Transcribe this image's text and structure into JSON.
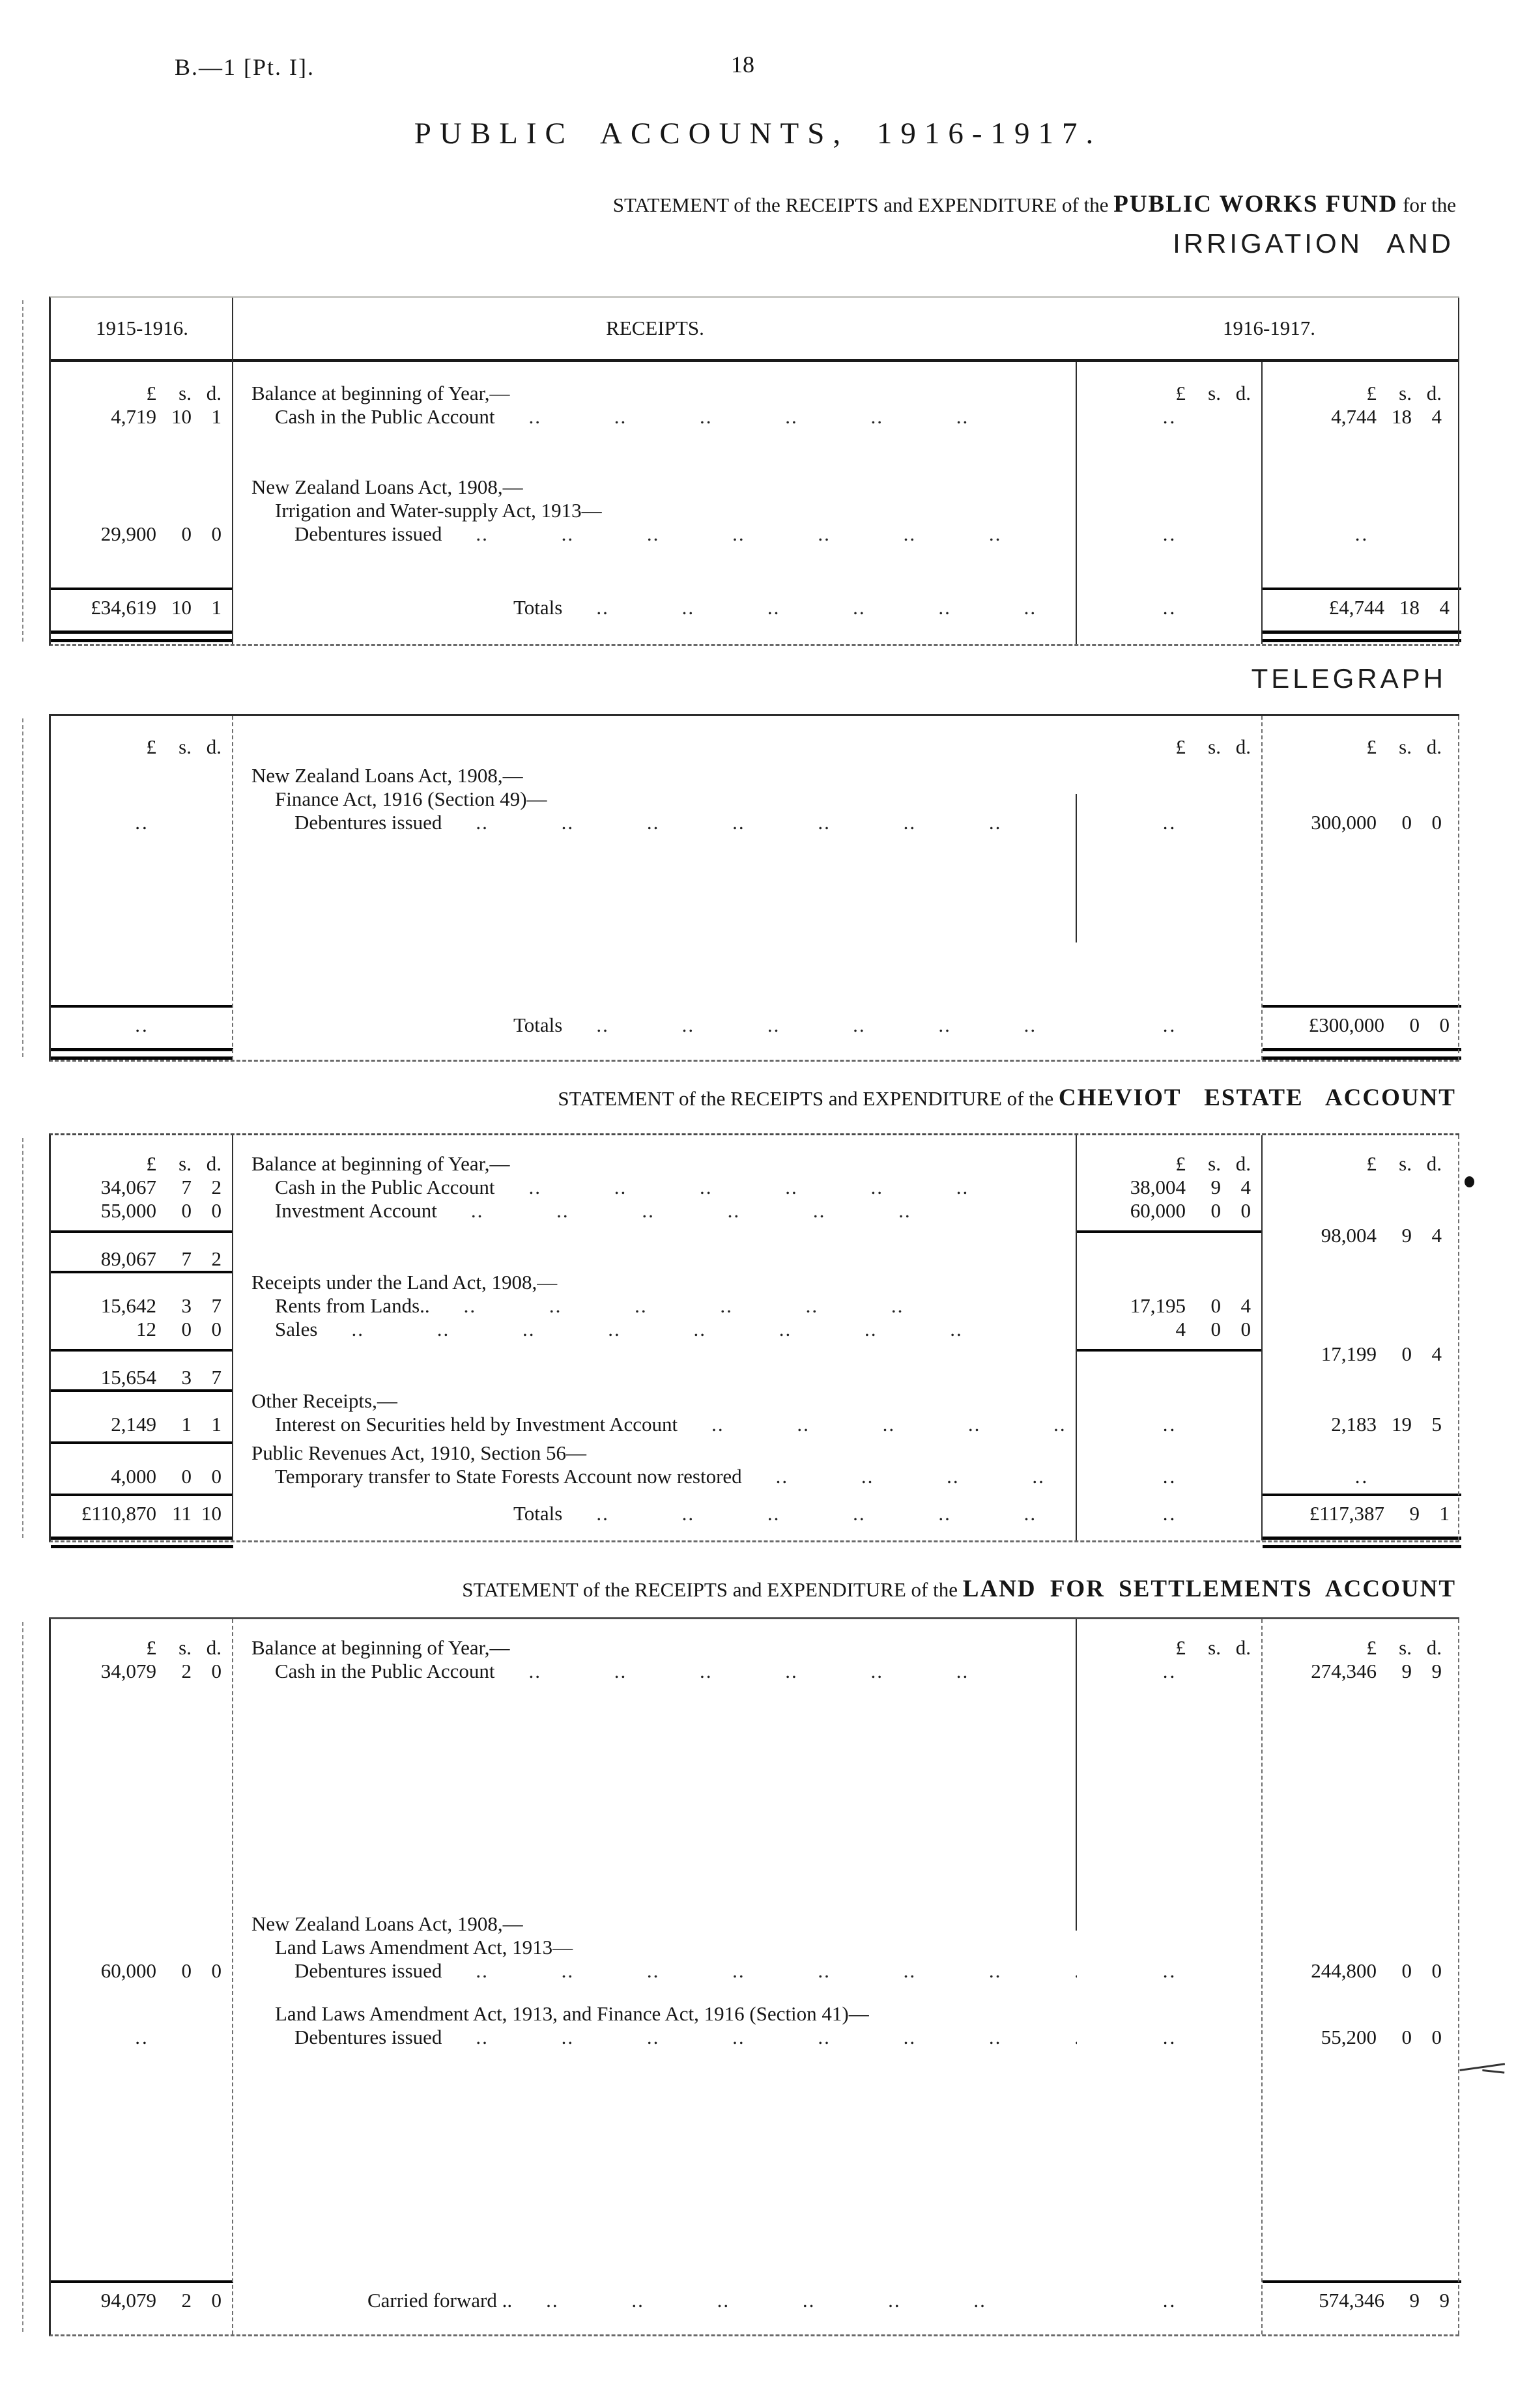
{
  "page": {
    "doc_ref": "B.—1 [Pt. I].",
    "page_number": "18",
    "title": "PUBLIC ACCOUNTS, 1916-1917.",
    "statement_prefix": "STATEMENT of the RECEIPTS and EXPENDITURE of the ",
    "works_account": "PUBLIC WORKS FUND",
    "works_suffix": " for the",
    "irrigation_heading": "IRRIGATION AND",
    "telegraph_heading": "TELEGRAPH",
    "cheviot_account": "CHEVIOT ESTATE ACCOUNT",
    "land_account": "LAND FOR SETTLEMENTS ACCOUNT",
    "currency_header": "£ s. d.",
    "ink_color": "#161616",
    "paper_color": "#ffffff"
  },
  "t1": {
    "year_left": "1915-1916.",
    "receipts_header": "RECEIPTS.",
    "year_right": "1916-1917.",
    "balance_group": "Balance at beginning of Year,—",
    "cash_label": "Cash in the Public Account",
    "cash_dots": ".. .. .. .. .. ..",
    "cash_left": "4,719 10 1",
    "cash_mid": "..",
    "cash_right": "4,744 18 4",
    "loans_group": "New Zealand Loans Act, 1908,—",
    "irrigation_sub": "Irrigation and Water-supply Act, 1913—",
    "deb_label": "Debentures issued",
    "deb_dots": ".. .. .. .. .. .. ..",
    "deb_left": "29,900 0 0",
    "deb_mid": "..",
    "deb_right": "..",
    "totals_label": "Totals",
    "totals_dots": ".. .. .. .. .. ..",
    "totals_left": "£34,619 10 1",
    "totals_mid": "..",
    "totals_right": "£4,744 18 4"
  },
  "t2": {
    "loans_group": "New Zealand Loans Act, 1908,—",
    "finance_sub": "Finance Act, 1916 (Section 49)—",
    "deb_label": "Debentures issued",
    "deb_dots": ".. .. .. .. .. .. ..",
    "deb_left": "..",
    "deb_mid": "..",
    "deb_right": "300,000 0 0",
    "totals_label": "Totals",
    "totals_dots": ".. .. .. .. .. ..",
    "totals_left": "..",
    "totals_mid": "..",
    "totals_right": "£300,000 0 0"
  },
  "t3": {
    "balance_group": "Balance at beginning of Year,—",
    "cash_label": "Cash in the Public Account",
    "cash_dots": ".. .. .. .. .. ..",
    "cash_left": "34,067 7 2",
    "cash_mid": "38,004 9 4",
    "invest_label": "Investment Account",
    "invest_dots": ".. .. .. .. .. ..",
    "invest_left": "55,000 0 0",
    "invest_mid": "60,000 0 0",
    "balance_total_right": "98,004 9 4",
    "balance_total_left": "89,067 7 2",
    "land_group": "Receipts under the Land Act, 1908,—",
    "rents_label": "Rents from Lands..",
    "rents_dots": ".. .. .. .. .. ..",
    "rents_left": "15,642 3 7",
    "rents_mid": "17,195 0 4",
    "sales_label": "Sales",
    "sales_dots": ".. .. .. .. .. .. .. ..",
    "sales_left": "12 0 0",
    "sales_mid": "4 0 0",
    "land_total_right": "17,199 0 4",
    "land_total_left": "15,654 3 7",
    "other_group": "Other Receipts,—",
    "interest_label": "Interest on Securities held by Investment Account",
    "interest_dots": ".. .. .. .. ..",
    "interest_left": "2,149 1 1",
    "interest_mid": "..",
    "interest_right": "2,183 19 5",
    "revenues_group": "Public Revenues Act, 1910, Section 56—",
    "transfer_label": "Temporary transfer to State Forests Account now restored",
    "transfer_dots": ".. .. .. ..",
    "transfer_left": "4,000 0 0",
    "transfer_mid": "..",
    "transfer_right": "..",
    "totals_label": "Totals",
    "totals_dots": ".. .. .. .. .. ..",
    "totals_left": "£110,870 11 10",
    "totals_mid": "..",
    "totals_right": "£117,387 9 1"
  },
  "t4": {
    "balance_group": "Balance at beginning of Year,—",
    "cash_label": "Cash in the Public Account",
    "cash_dots": ".. .. .. .. .. ..",
    "cash_left": "34,079 2 0",
    "cash_mid": "..",
    "cash_right": "274,346 9 9",
    "loans_group": "New Zealand Loans Act, 1908,—",
    "amend_sub": "Land Laws Amendment Act, 1913—",
    "deb1_label": "Debentures issued",
    "deb1_dots": ".. .. .. .. .. .. .. ..",
    "deb1_left": "60,000 0 0",
    "deb1_mid": "..",
    "deb1_right": "244,800 0 0",
    "amend2_group": "Land Laws Amendment Act, 1913, and Finance Act, 1916 (Section 41)—",
    "deb2_label": "Debentures issued",
    "deb2_dots": ".. .. .. .. .. .. .. ..",
    "deb2_left": "..",
    "deb2_mid": "..",
    "deb2_right": "55,200 0 0",
    "carried_label": "Carried forward ..",
    "carried_dots": ".. .. .. .. .. ..",
    "carried_left": "94,079 2 0",
    "carried_mid": "..",
    "carried_right": "574,346 9 9"
  }
}
